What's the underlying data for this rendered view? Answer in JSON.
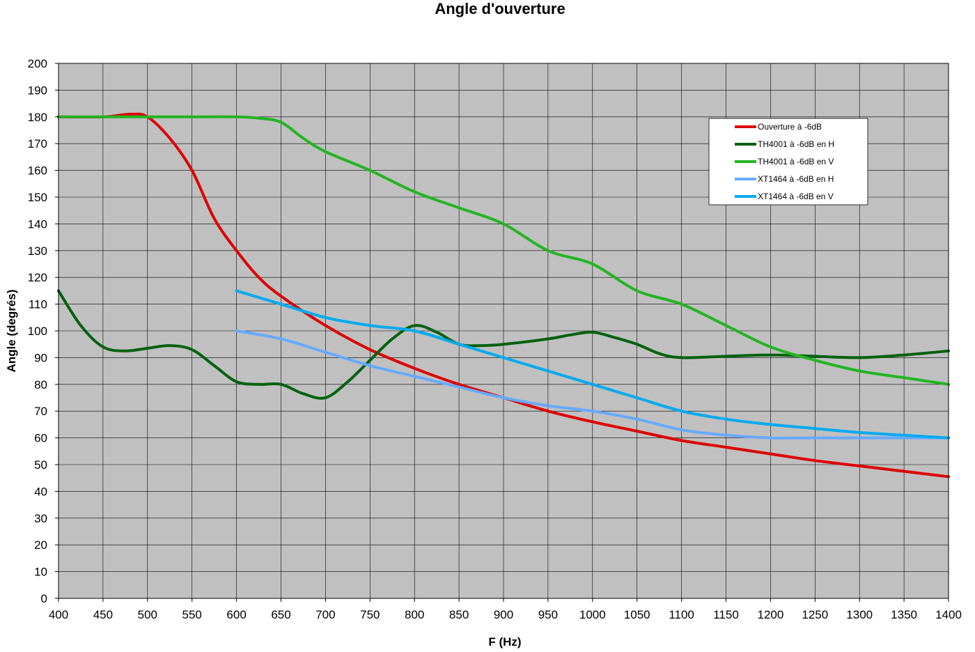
{
  "chart_data": {
    "type": "line",
    "title": "Angle d'ouverture",
    "xlabel": "F (Hz)",
    "ylabel": "Angle (degrés)",
    "xlim": [
      400,
      1400
    ],
    "ylim": [
      0,
      200
    ],
    "xticks": [
      400,
      450,
      500,
      550,
      600,
      650,
      700,
      750,
      800,
      850,
      900,
      950,
      1000,
      1050,
      1100,
      1150,
      1200,
      1250,
      1300,
      1350,
      1400
    ],
    "yticks": [
      0,
      10,
      20,
      30,
      40,
      50,
      60,
      70,
      80,
      90,
      100,
      110,
      120,
      130,
      140,
      150,
      160,
      170,
      180,
      190,
      200
    ],
    "grid": true,
    "plot_background": "#c0c0c0",
    "legend_position": "top-right",
    "series": [
      {
        "name": "Ouverture à -6dB",
        "color": "#dd0000",
        "x": [
          400,
          450,
          480,
          500,
          525,
          550,
          575,
          600,
          625,
          650,
          700,
          750,
          800,
          850,
          900,
          950,
          1000,
          1050,
          1100,
          1150,
          1200,
          1250,
          1300,
          1350,
          1400
        ],
        "y": [
          180,
          180,
          181,
          180,
          172,
          160,
          142,
          130,
          120,
          113,
          102,
          93,
          86,
          80,
          75,
          70,
          66,
          62.5,
          59,
          56.5,
          54,
          51.5,
          49.5,
          47.5,
          45.5
        ]
      },
      {
        "name": "TH4001 à -6dB en H",
        "color": "#006010",
        "x": [
          400,
          425,
          450,
          475,
          500,
          525,
          550,
          575,
          600,
          625,
          650,
          675,
          700,
          725,
          750,
          775,
          800,
          825,
          850,
          875,
          900,
          950,
          975,
          1000,
          1025,
          1050,
          1075,
          1100,
          1150,
          1200,
          1250,
          1300,
          1350,
          1400
        ],
        "y": [
          115,
          102,
          94,
          92.5,
          93.5,
          94.5,
          93,
          87,
          81,
          80,
          80,
          76.5,
          75,
          81,
          89,
          97,
          102,
          99.5,
          95,
          94.5,
          95,
          97,
          98.5,
          99.5,
          97.5,
          95,
          91.5,
          90,
          90.5,
          91,
          90.5,
          90,
          91,
          92.5
        ]
      },
      {
        "name": "TH4001 à -6dB en V",
        "color": "#22b422",
        "x": [
          400,
          450,
          500,
          550,
          600,
          625,
          650,
          675,
          700,
          750,
          800,
          850,
          900,
          950,
          1000,
          1050,
          1100,
          1150,
          1200,
          1250,
          1300,
          1350,
          1400
        ],
        "y": [
          180,
          180,
          180,
          180,
          180,
          179.5,
          178,
          172,
          167,
          160,
          152,
          146,
          140,
          130,
          125,
          115,
          110,
          102,
          94,
          89,
          85,
          82.5,
          80
        ]
      },
      {
        "name": "XT1464 à -6dB en H",
        "color": "#66aaff",
        "x": [
          600,
          650,
          700,
          750,
          800,
          850,
          900,
          950,
          1000,
          1050,
          1100,
          1150,
          1200,
          1250,
          1300,
          1350,
          1400
        ],
        "y": [
          100,
          97,
          92,
          87,
          83,
          79,
          75,
          72,
          70,
          67,
          63,
          61,
          60,
          60,
          60,
          60,
          60
        ]
      },
      {
        "name": "XT1464 à -6dB en V",
        "color": "#00aaee",
        "x": [
          600,
          650,
          700,
          750,
          800,
          850,
          900,
          950,
          1000,
          1050,
          1100,
          1150,
          1200,
          1250,
          1300,
          1350,
          1400
        ],
        "y": [
          115,
          110,
          105,
          102,
          100,
          95,
          90,
          85,
          80,
          75,
          70,
          67,
          65,
          63.5,
          62,
          61,
          60
        ]
      }
    ]
  }
}
